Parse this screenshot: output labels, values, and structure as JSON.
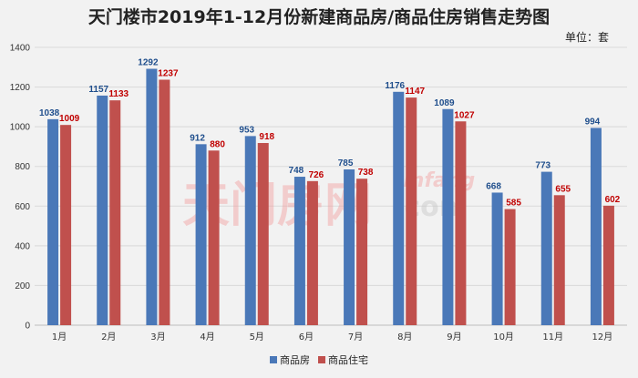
{
  "chart_data": {
    "type": "bar",
    "title": "天门楼市2019年1-12月份新建商品房/商品住房销售走势图",
    "unit": "单位：套",
    "categories": [
      "1月",
      "2月",
      "3月",
      "4月",
      "5月",
      "6月",
      "7月",
      "8月",
      "9月",
      "10月",
      "11月",
      "12月"
    ],
    "series": [
      {
        "name": "商品房",
        "color": "#4a78b8",
        "label_color": "#1f4e8c",
        "values": [
          1038,
          1157,
          1292,
          912,
          953,
          748,
          785,
          1176,
          1089,
          668,
          773,
          994
        ]
      },
      {
        "name": "商品住宅",
        "color": "#c0504d",
        "label_color": "#c00000",
        "values": [
          1009,
          1133,
          1237,
          880,
          918,
          726,
          738,
          1147,
          1027,
          585,
          655,
          602
        ]
      }
    ],
    "ylim": [
      0,
      1400
    ],
    "yticks": [
      0,
      200,
      400,
      600,
      800,
      1000,
      1200,
      1400
    ],
    "grid": true,
    "legend": "bottom"
  },
  "watermark": {
    "text_cn": "天门房网",
    "text_en": "tmfang",
    "text_com": ".com"
  }
}
